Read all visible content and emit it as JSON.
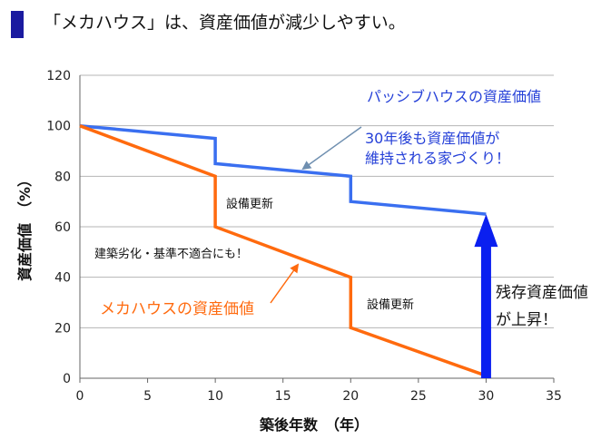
{
  "heading": "「メカハウス」は、資産価値が減少しやすい。",
  "colors": {
    "blue": "#3a6ff0",
    "orange": "#ff6a0e",
    "arrow": "#0a1ff0",
    "header_bar": "#1a1aa0"
  },
  "chart_data": {
    "type": "line",
    "xlabel": "築後年数　（年）",
    "ylabel": "資産価値　（%）",
    "xlim": [
      0,
      35
    ],
    "ylim": [
      0,
      120
    ],
    "x_ticks": [
      0,
      5,
      10,
      15,
      20,
      25,
      30,
      35
    ],
    "y_ticks": [
      0,
      20,
      40,
      60,
      80,
      100,
      120
    ],
    "grid": "horizontal",
    "series": [
      {
        "name": "パッシブハウスの資産価値",
        "color": "#3a6ff0",
        "points": [
          [
            0,
            100
          ],
          [
            10,
            95
          ],
          [
            10,
            85
          ],
          [
            20,
            80
          ],
          [
            20,
            70
          ],
          [
            30,
            65
          ]
        ]
      },
      {
        "name": "メカハウスの資産価値",
        "color": "#ff6a0e",
        "points": [
          [
            0,
            100
          ],
          [
            10,
            80
          ],
          [
            10,
            60
          ],
          [
            20,
            40
          ],
          [
            20,
            20
          ],
          [
            30,
            1
          ]
        ]
      }
    ],
    "annotations": {
      "passive_label": "パッシブハウスの資産価値",
      "passive_note_line1": "30年後も資産価値が",
      "passive_note_line2": "維持される家づくり！",
      "renewal_1": "設備更新",
      "renewal_2": "設備更新",
      "deterioration": "建築劣化・基準不適合にも！",
      "mecha_label": "メカハウスの資産価値",
      "residual_line1": "残存資産価値",
      "residual_line2": "が上昇！"
    }
  }
}
